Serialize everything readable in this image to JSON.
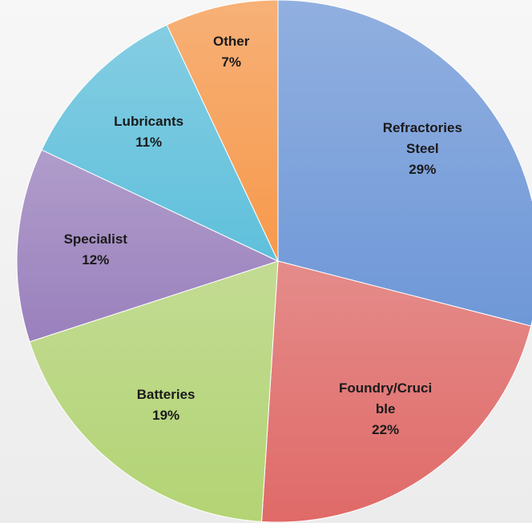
{
  "chart_data": {
    "type": "pie",
    "categories": [
      "Refractories Steel",
      "Foundry/Crucible",
      "Batteries",
      "Specialist",
      "Lubricants",
      "Other"
    ],
    "values": [
      29,
      22,
      19,
      12,
      11,
      7
    ],
    "value_labels": [
      "29%",
      "22%",
      "19%",
      "12%",
      "11%",
      "7%"
    ],
    "colors": [
      "#6f98d8",
      "#e06a68",
      "#b3d474",
      "#9a80bd",
      "#5fc0dc",
      "#f7994c"
    ]
  }
}
